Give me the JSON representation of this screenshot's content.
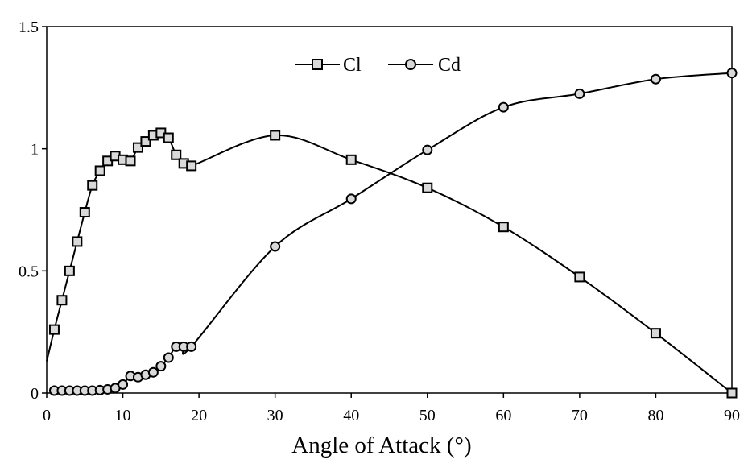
{
  "chart_data": {
    "type": "line",
    "title": "",
    "xlabel": "Angle of Attack (°)",
    "ylabel": "",
    "xlim": [
      0,
      90
    ],
    "ylim": [
      0,
      1.5
    ],
    "xticks": [
      0,
      10,
      20,
      30,
      40,
      50,
      60,
      70,
      80,
      90
    ],
    "yticks": [
      0,
      0.5,
      1,
      1.5
    ],
    "xtick_labels": [
      "0",
      "10",
      "20",
      "30",
      "40",
      "50",
      "60",
      "70",
      "80",
      "90"
    ],
    "ytick_labels": [
      "0",
      "0.5",
      "1",
      "1.5"
    ],
    "grid": false,
    "legend_position": "top-center",
    "series": [
      {
        "name": "Cl",
        "marker": "square",
        "curve_start": [
          0,
          0.13
        ],
        "x": [
          1,
          2,
          3,
          4,
          5,
          6,
          7,
          8,
          9,
          10,
          11,
          12,
          13,
          14,
          15,
          16,
          17,
          18,
          19,
          30,
          40,
          50,
          60,
          70,
          80,
          90
        ],
        "y": [
          0.26,
          0.38,
          0.5,
          0.62,
          0.74,
          0.85,
          0.91,
          0.95,
          0.97,
          0.955,
          0.95,
          1.005,
          1.03,
          1.055,
          1.065,
          1.045,
          0.975,
          0.94,
          0.93,
          1.055,
          0.955,
          0.84,
          0.68,
          0.475,
          0.245,
          0.0
        ]
      },
      {
        "name": "Cd",
        "marker": "circle",
        "x": [
          1,
          2,
          3,
          4,
          5,
          6,
          7,
          8,
          9,
          10,
          11,
          12,
          13,
          14,
          15,
          16,
          17,
          18,
          19,
          30,
          40,
          50,
          60,
          70,
          80,
          90
        ],
        "y": [
          0.01,
          0.01,
          0.01,
          0.01,
          0.01,
          0.01,
          0.012,
          0.015,
          0.02,
          0.035,
          0.07,
          0.065,
          0.075,
          0.085,
          0.11,
          0.145,
          0.19,
          0.19,
          0.19,
          0.6,
          0.795,
          0.995,
          1.17,
          1.225,
          1.285,
          1.31
        ]
      }
    ]
  }
}
